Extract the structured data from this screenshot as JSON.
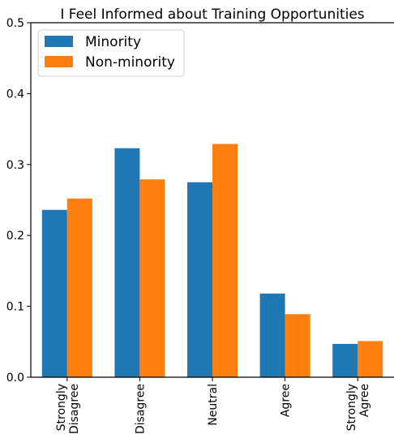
{
  "chart_data": {
    "type": "bar",
    "title": "I Feel Informed about Training Opportunities",
    "xlabel": "",
    "ylabel": "",
    "categories": [
      [
        "Strongly",
        "Disagree"
      ],
      [
        "Disagree"
      ],
      [
        "Neutral"
      ],
      [
        "Agree"
      ],
      [
        "Strongly",
        "Agree"
      ]
    ],
    "series": [
      {
        "name": "Minority",
        "color": "#1f77b4",
        "values": [
          0.236,
          0.323,
          0.275,
          0.118,
          0.047
        ]
      },
      {
        "name": "Non-minority",
        "color": "#ff7f0e",
        "values": [
          0.252,
          0.279,
          0.329,
          0.089,
          0.051
        ]
      }
    ],
    "ylim": [
      0,
      0.5
    ],
    "yticks": [
      "0.0",
      "0.1",
      "0.2",
      "0.3",
      "0.4",
      "0.5"
    ],
    "grid": false,
    "legend": "top-left"
  }
}
